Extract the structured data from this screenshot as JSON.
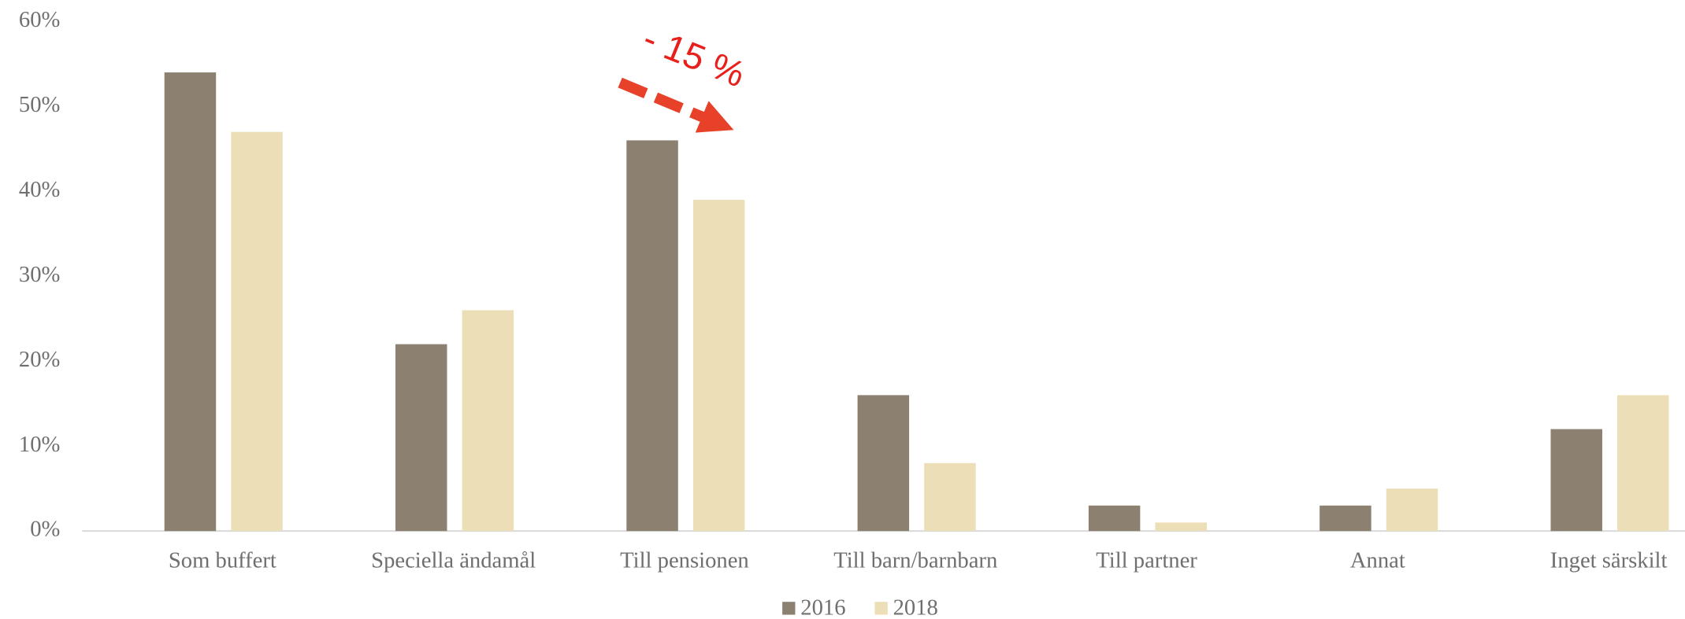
{
  "chart_data": {
    "type": "bar",
    "categories": [
      "Som buffert",
      "Speciella ändamål",
      "Till pensionen",
      "Till barn/barnbarn",
      "Till partner",
      "Annat",
      "Inget särskilt"
    ],
    "series": [
      {
        "name": "2016",
        "color": "#8c8070",
        "values": [
          54,
          22,
          46,
          16,
          3,
          3,
          12
        ]
      },
      {
        "name": "2018",
        "color": "#ecdfb7",
        "values": [
          47,
          26,
          39,
          8,
          1,
          5,
          16
        ]
      }
    ],
    "ylim": [
      0,
      60
    ],
    "yticks": [
      {
        "value": 0,
        "label": "0%"
      },
      {
        "value": 10,
        "label": "10%"
      },
      {
        "value": 20,
        "label": "20%"
      },
      {
        "value": 30,
        "label": "30%"
      },
      {
        "value": 40,
        "label": "40%"
      },
      {
        "value": 50,
        "label": "50%"
      },
      {
        "value": 60,
        "label": "60%"
      }
    ],
    "annotation": "- 15 %",
    "legend": "bottom"
  }
}
